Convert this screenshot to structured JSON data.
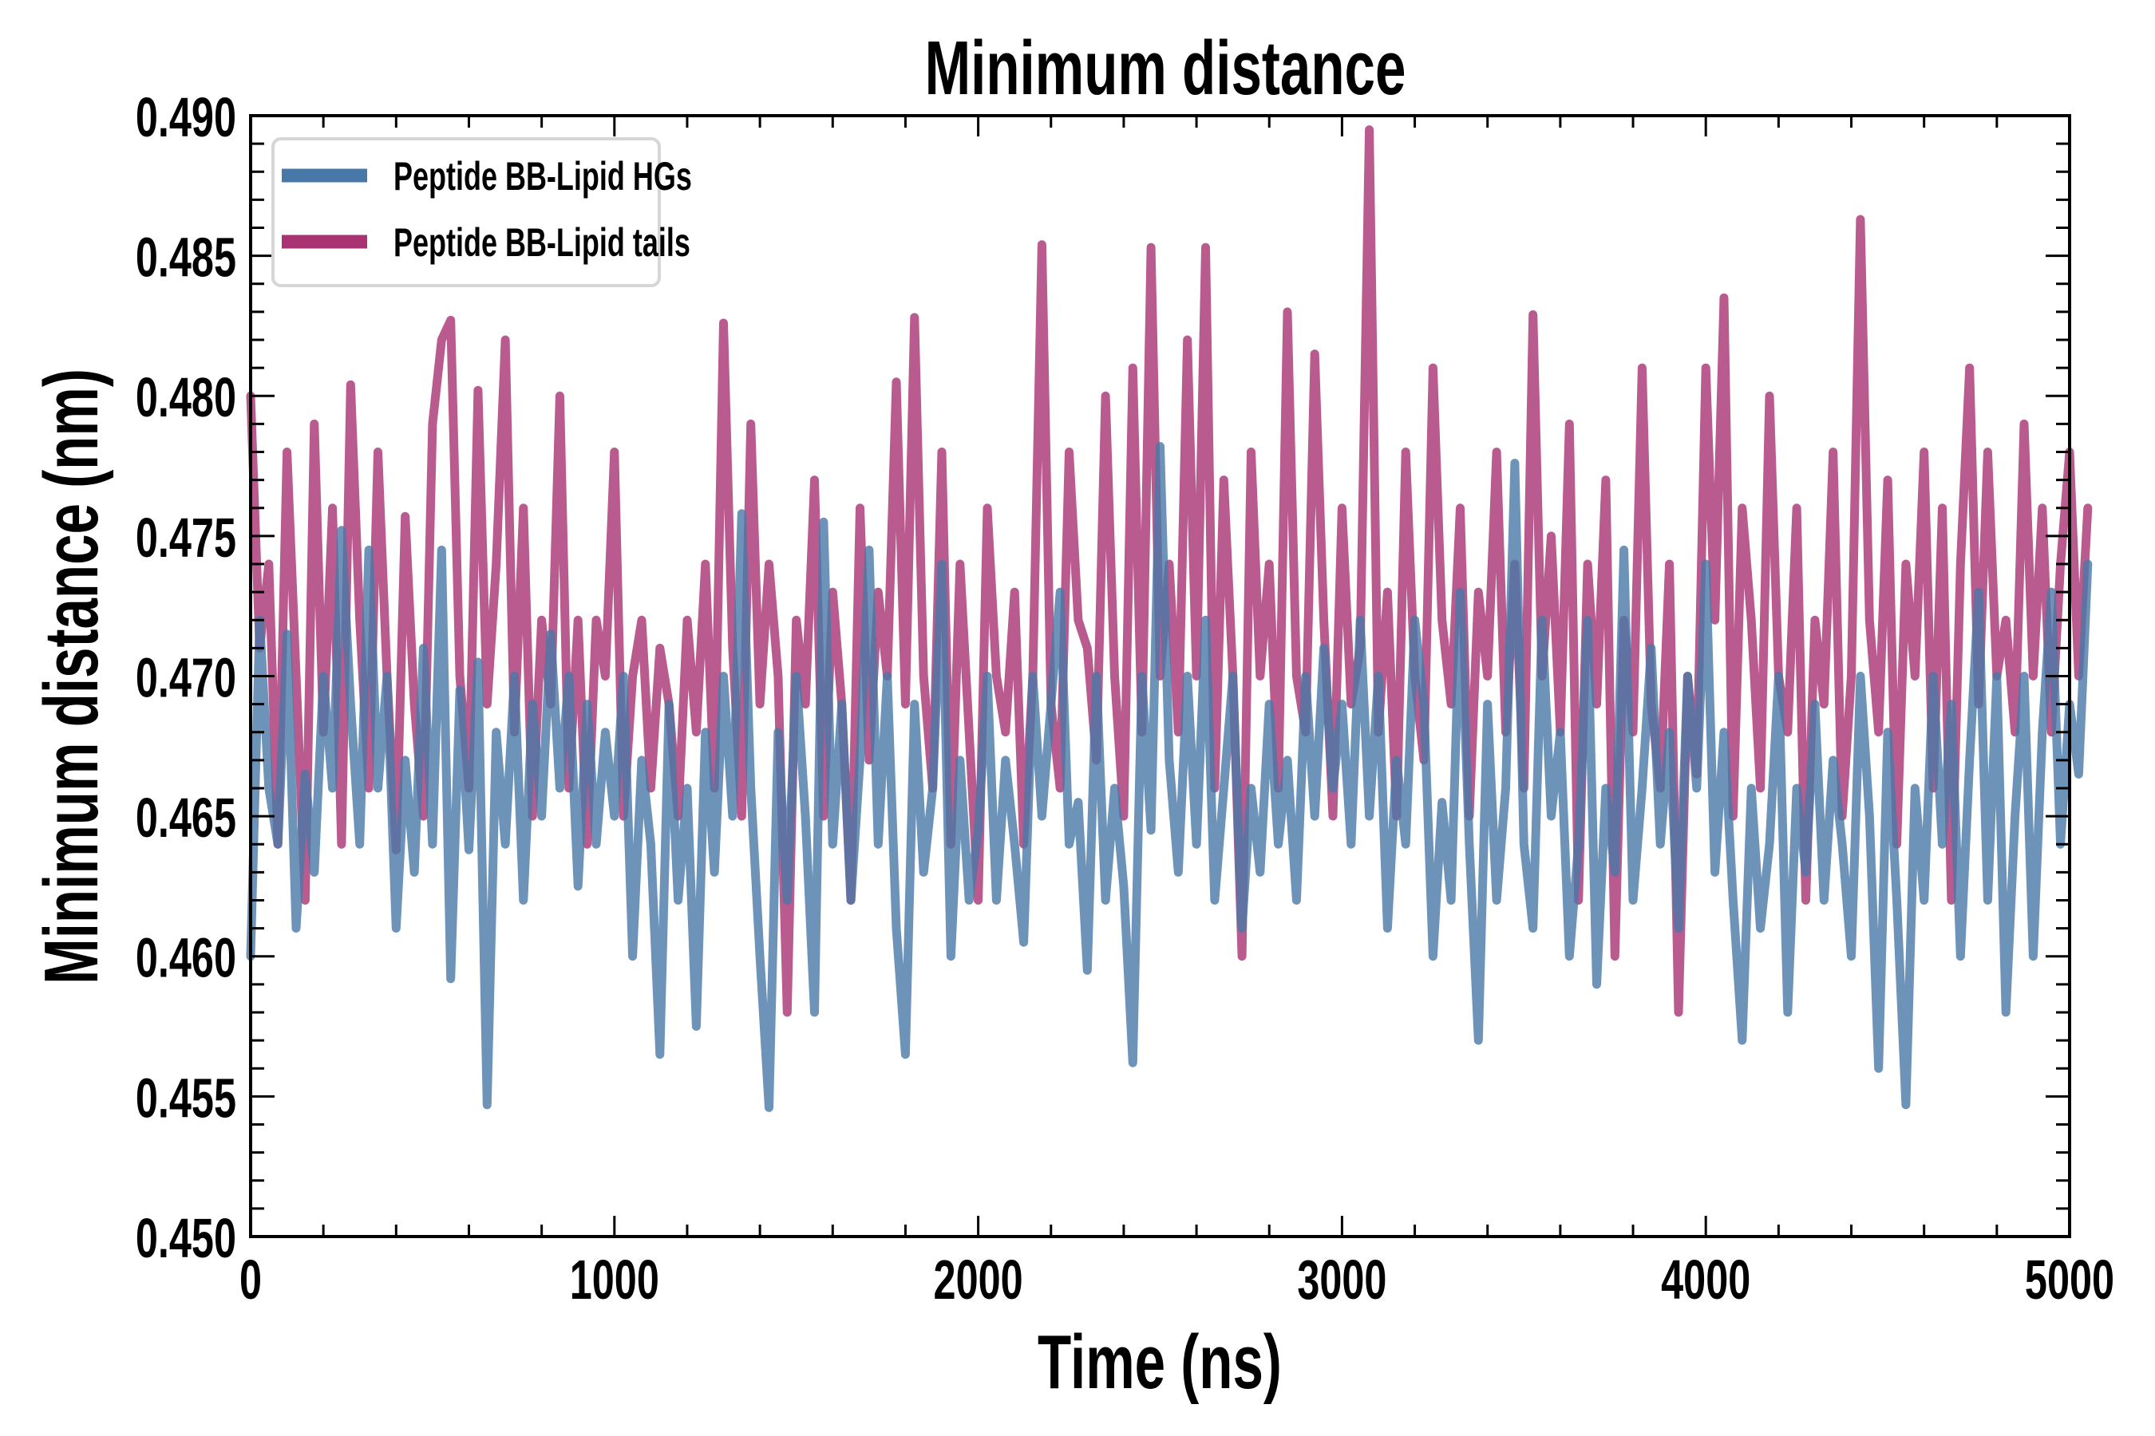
{
  "chart_data": {
    "type": "line",
    "title": "Minimum distance",
    "xlabel": "Time (ns)",
    "ylabel": "Minimum distance (nm)",
    "xlim": [
      0,
      5000
    ],
    "ylim": [
      0.45,
      0.49
    ],
    "xticks": [
      0,
      1000,
      2000,
      3000,
      4000,
      5000
    ],
    "xtick_labels": [
      "0",
      "1000",
      "2000",
      "3000",
      "4000",
      "5000"
    ],
    "yticks": [
      0.45,
      0.455,
      0.46,
      0.465,
      0.47,
      0.475,
      0.48,
      0.485,
      0.49
    ],
    "ytick_labels": [
      "0.450",
      "0.455",
      "0.460",
      "0.465",
      "0.470",
      "0.475",
      "0.480",
      "0.485",
      "0.490"
    ],
    "x_minor_step": 200,
    "y_minor_step": 0.001,
    "grid": false,
    "legend_position": "top-left",
    "x_step": 25,
    "series": [
      {
        "name": "Peptide BB-Lipid HGs",
        "color": "#4878a8",
        "values": [
          0.46,
          0.472,
          0.466,
          0.464,
          0.4715,
          0.461,
          0.4665,
          0.463,
          0.47,
          0.466,
          0.4752,
          0.469,
          0.464,
          0.4745,
          0.466,
          0.47,
          0.461,
          0.467,
          0.463,
          0.471,
          0.464,
          0.4745,
          0.4592,
          0.4695,
          0.4638,
          0.4705,
          0.4547,
          0.468,
          0.464,
          0.47,
          0.462,
          0.469,
          0.465,
          0.4715,
          0.466,
          0.47,
          0.4625,
          0.469,
          0.464,
          0.468,
          0.465,
          0.47,
          0.46,
          0.467,
          0.464,
          0.4565,
          0.469,
          0.462,
          0.466,
          0.4575,
          0.468,
          0.463,
          0.47,
          0.465,
          0.4758,
          0.466,
          0.46,
          0.4546,
          0.468,
          0.462,
          0.47,
          0.465,
          0.458,
          0.4755,
          0.464,
          0.469,
          0.462,
          0.467,
          0.4745,
          0.464,
          0.47,
          0.461,
          0.4565,
          0.469,
          0.463,
          0.466,
          0.474,
          0.46,
          0.467,
          0.462,
          0.4645,
          0.47,
          0.462,
          0.467,
          0.464,
          0.4605,
          0.47,
          0.465,
          0.469,
          0.473,
          0.464,
          0.4655,
          0.4595,
          0.47,
          0.462,
          0.466,
          0.4625,
          0.4562,
          0.47,
          0.4645,
          0.4782,
          0.467,
          0.463,
          0.47,
          0.464,
          0.472,
          0.462,
          0.466,
          0.47,
          0.461,
          0.466,
          0.463,
          0.469,
          0.464,
          0.467,
          0.462,
          0.47,
          0.465,
          0.471,
          0.466,
          0.469,
          0.464,
          0.472,
          0.465,
          0.47,
          0.461,
          0.467,
          0.464,
          0.472,
          0.469,
          0.46,
          0.4655,
          0.462,
          0.473,
          0.464,
          0.457,
          0.469,
          0.462,
          0.466,
          0.4776,
          0.464,
          0.461,
          0.472,
          0.465,
          0.468,
          0.46,
          0.464,
          0.472,
          0.459,
          0.466,
          0.463,
          0.4745,
          0.462,
          0.466,
          0.471,
          0.464,
          0.468,
          0.461,
          0.47,
          0.466,
          0.474,
          0.463,
          0.468,
          0.462,
          0.457,
          0.466,
          0.461,
          0.464,
          0.47,
          0.458,
          0.466,
          0.463,
          0.469,
          0.462,
          0.467,
          0.464,
          0.46,
          0.47,
          0.465,
          0.456,
          0.468,
          0.462,
          0.4547,
          0.466,
          0.462,
          0.47,
          0.464,
          0.469,
          0.46,
          0.467,
          0.473,
          0.462,
          0.47,
          0.458,
          0.465,
          0.47,
          0.46,
          0.468,
          0.473,
          0.464,
          0.469,
          0.4665,
          0.474
        ]
      },
      {
        "name": "Peptide BB-Lipid tails",
        "color": "#a83272",
        "values": [
          0.48,
          0.471,
          0.474,
          0.464,
          0.478,
          0.47,
          0.462,
          0.479,
          0.468,
          0.476,
          0.464,
          0.4804,
          0.472,
          0.466,
          0.478,
          0.47,
          0.4638,
          0.4757,
          0.469,
          0.465,
          0.479,
          0.482,
          0.4827,
          0.47,
          0.466,
          0.4802,
          0.469,
          0.474,
          0.482,
          0.468,
          0.476,
          0.465,
          0.472,
          0.469,
          0.48,
          0.466,
          0.472,
          0.464,
          0.472,
          0.47,
          0.478,
          0.465,
          0.47,
          0.472,
          0.466,
          0.471,
          0.469,
          0.465,
          0.472,
          0.468,
          0.474,
          0.466,
          0.4826,
          0.471,
          0.465,
          0.479,
          0.469,
          0.474,
          0.47,
          0.458,
          0.472,
          0.469,
          0.477,
          0.465,
          0.473,
          0.469,
          0.462,
          0.476,
          0.467,
          0.473,
          0.47,
          0.4805,
          0.469,
          0.4828,
          0.47,
          0.466,
          0.478,
          0.464,
          0.474,
          0.468,
          0.462,
          0.476,
          0.47,
          0.468,
          0.473,
          0.464,
          0.47,
          0.4854,
          0.469,
          0.466,
          0.478,
          0.472,
          0.471,
          0.467,
          0.48,
          0.47,
          0.465,
          0.481,
          0.468,
          0.4853,
          0.47,
          0.474,
          0.468,
          0.482,
          0.47,
          0.4853,
          0.466,
          0.477,
          0.47,
          0.46,
          0.478,
          0.47,
          0.474,
          0.466,
          0.483,
          0.47,
          0.468,
          0.4815,
          0.472,
          0.465,
          0.476,
          0.469,
          0.471,
          0.4895,
          0.468,
          0.473,
          0.465,
          0.478,
          0.47,
          0.467,
          0.481,
          0.472,
          0.469,
          0.476,
          0.465,
          0.473,
          0.47,
          0.478,
          0.468,
          0.474,
          0.466,
          0.4829,
          0.47,
          0.475,
          0.468,
          0.479,
          0.462,
          0.474,
          0.469,
          0.477,
          0.46,
          0.472,
          0.468,
          0.481,
          0.469,
          0.466,
          0.474,
          0.458,
          0.47,
          0.4665,
          0.481,
          0.472,
          0.4835,
          0.465,
          0.476,
          0.472,
          0.466,
          0.48,
          0.47,
          0.468,
          0.476,
          0.462,
          0.472,
          0.469,
          0.478,
          0.465,
          0.47,
          0.4863,
          0.472,
          0.468,
          0.477,
          0.464,
          0.474,
          0.47,
          0.478,
          0.466,
          0.476,
          0.462,
          0.474,
          0.481,
          0.469,
          0.478,
          0.47,
          0.472,
          0.468,
          0.479,
          0.47,
          0.476,
          0.468,
          0.474,
          0.478,
          0.47,
          0.476
        ]
      }
    ]
  }
}
